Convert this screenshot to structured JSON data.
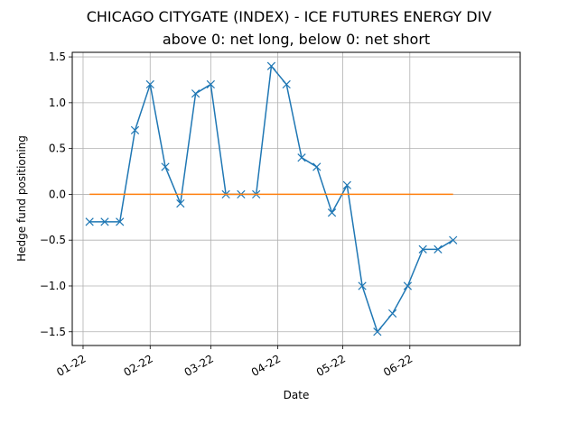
{
  "chart_data": {
    "type": "line",
    "title": "CHICAGO CITYGATE (INDEX) - ICE FUTURES ENERGY DIV",
    "subtitle": "above 0: net long, below 0: net short",
    "xlabel": "Date",
    "ylabel": "Hedge fund positioning",
    "xlim": [
      "2021-12-27",
      "2022-07-22"
    ],
    "ylim": [
      -1.65,
      1.55
    ],
    "grid": true,
    "x_ticks": [
      {
        "date": "2022-01-01",
        "label": "01-22"
      },
      {
        "date": "2022-02-01",
        "label": "02-22"
      },
      {
        "date": "2022-03-01",
        "label": "03-22"
      },
      {
        "date": "2022-04-01",
        "label": "04-22"
      },
      {
        "date": "2022-05-01",
        "label": "05-22"
      },
      {
        "date": "2022-06-01",
        "label": "06-22"
      }
    ],
    "y_ticks": [
      {
        "value": 1.5,
        "label": "1.5"
      },
      {
        "value": 1.0,
        "label": "1.0"
      },
      {
        "value": 0.5,
        "label": "0.5"
      },
      {
        "value": 0.0,
        "label": "0.0"
      },
      {
        "value": -0.5,
        "label": "−0.5"
      },
      {
        "value": -1.0,
        "label": "−1.0"
      },
      {
        "value": -1.5,
        "label": "−1.5"
      }
    ],
    "series": [
      {
        "color": "#1f77b4",
        "marker": "x",
        "points": [
          {
            "x": "2022-01-04",
            "y": -0.3
          },
          {
            "x": "2022-01-11",
            "y": -0.3
          },
          {
            "x": "2022-01-18",
            "y": -0.3
          },
          {
            "x": "2022-01-25",
            "y": 0.7
          },
          {
            "x": "2022-02-01",
            "y": 1.2
          },
          {
            "x": "2022-02-08",
            "y": 0.3
          },
          {
            "x": "2022-02-15",
            "y": -0.1
          },
          {
            "x": "2022-02-22",
            "y": 1.1
          },
          {
            "x": "2022-03-01",
            "y": 1.2
          },
          {
            "x": "2022-03-08",
            "y": 0.0
          },
          {
            "x": "2022-03-15",
            "y": 0.0
          },
          {
            "x": "2022-03-22",
            "y": 0.0
          },
          {
            "x": "2022-03-29",
            "y": 1.4
          },
          {
            "x": "2022-04-05",
            "y": 1.2
          },
          {
            "x": "2022-04-12",
            "y": 0.4
          },
          {
            "x": "2022-04-19",
            "y": 0.3
          },
          {
            "x": "2022-04-26",
            "y": -0.2
          },
          {
            "x": "2022-05-03",
            "y": 0.1
          },
          {
            "x": "2022-05-10",
            "y": -1.0
          },
          {
            "x": "2022-05-17",
            "y": -1.5
          },
          {
            "x": "2022-05-24",
            "y": -1.3
          },
          {
            "x": "2022-05-31",
            "y": -1.0
          },
          {
            "x": "2022-06-07",
            "y": -0.6
          },
          {
            "x": "2022-06-14",
            "y": -0.6
          },
          {
            "x": "2022-06-21",
            "y": -0.5
          }
        ]
      },
      {
        "color": "#ff7f0e",
        "marker": "none",
        "points": [
          {
            "x": "2022-01-04",
            "y": 0.0
          },
          {
            "x": "2022-06-21",
            "y": 0.0
          }
        ]
      }
    ]
  }
}
